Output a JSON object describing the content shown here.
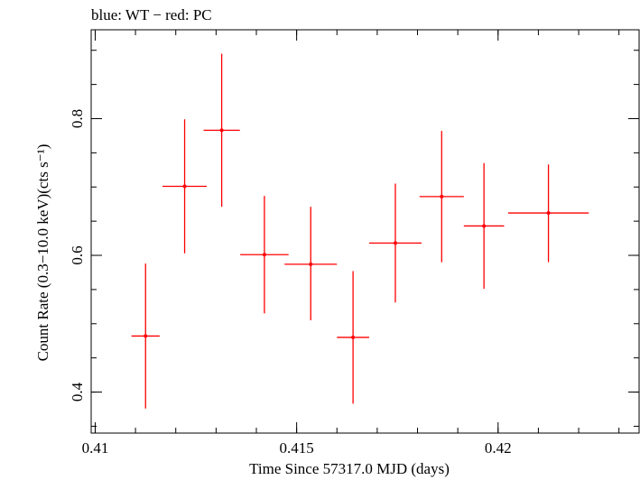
{
  "chart_data": {
    "type": "scatter",
    "title": "blue: WT − red: PC",
    "xlabel": "Time Since 57317.0 MJD (days)",
    "ylabel": "Count Rate (0.3−10.0 keV)(cts s⁻¹)",
    "xlim": [
      0.4099,
      0.4235
    ],
    "ylim": [
      0.34,
      0.93
    ],
    "x_ticks": [
      0.41,
      0.415,
      0.42
    ],
    "x_tick_labels": [
      "0.41",
      "0.415",
      "0.42"
    ],
    "y_ticks": [
      0.4,
      0.6,
      0.8
    ],
    "y_tick_labels": [
      "0.4",
      "0.6",
      "0.8"
    ],
    "grid": false,
    "series": [
      {
        "color": "#ff0000",
        "points": [
          {
            "x": 0.41125,
            "xerr": 0.00035,
            "y": 0.482,
            "ylo": 0.376,
            "yhi": 0.588
          },
          {
            "x": 0.41222,
            "xerr": 0.00055,
            "y": 0.701,
            "ylo": 0.603,
            "yhi": 0.799
          },
          {
            "x": 0.41314,
            "xerr": 0.00045,
            "y": 0.783,
            "ylo": 0.671,
            "yhi": 0.895
          },
          {
            "x": 0.4142,
            "xerr": 0.0006,
            "y": 0.601,
            "ylo": 0.515,
            "yhi": 0.687
          },
          {
            "x": 0.41535,
            "xerr": 0.00065,
            "y": 0.587,
            "ylo": 0.505,
            "yhi": 0.671
          },
          {
            "x": 0.4164,
            "xerr": 0.0004,
            "y": 0.48,
            "ylo": 0.383,
            "yhi": 0.577
          },
          {
            "x": 0.41745,
            "xerr": 0.00065,
            "y": 0.618,
            "ylo": 0.531,
            "yhi": 0.705
          },
          {
            "x": 0.4186,
            "xerr": 0.00055,
            "y": 0.686,
            "ylo": 0.59,
            "yhi": 0.782
          },
          {
            "x": 0.41965,
            "xerr": 0.0005,
            "y": 0.643,
            "ylo": 0.551,
            "yhi": 0.735
          },
          {
            "x": 0.42125,
            "xerr": 0.001,
            "y": 0.662,
            "ylo": 0.59,
            "yhi": 0.733
          }
        ]
      }
    ]
  }
}
